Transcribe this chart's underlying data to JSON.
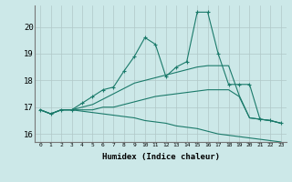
{
  "xlabel": "Humidex (Indice chaleur)",
  "bg_color": "#cce8e8",
  "grid_color": "#b0c8c8",
  "line_color": "#1a7a6a",
  "xlim": [
    -0.5,
    23.5
  ],
  "ylim": [
    15.7,
    20.8
  ],
  "yticks": [
    16,
    17,
    18,
    19,
    20
  ],
  "xticks": [
    0,
    1,
    2,
    3,
    4,
    5,
    6,
    7,
    8,
    9,
    10,
    11,
    12,
    13,
    14,
    15,
    16,
    17,
    18,
    19,
    20,
    21,
    22,
    23
  ],
  "lines": [
    {
      "x": [
        0,
        1,
        2,
        3,
        4,
        5,
        6,
        7,
        8,
        9,
        10,
        11,
        12,
        13,
        14,
        15,
        16,
        17,
        18,
        19,
        20,
        21,
        22,
        23
      ],
      "y": [
        16.9,
        16.75,
        16.9,
        16.9,
        16.85,
        16.8,
        16.75,
        16.7,
        16.65,
        16.6,
        16.5,
        16.45,
        16.4,
        16.3,
        16.25,
        16.2,
        16.1,
        16.0,
        15.95,
        15.9,
        15.85,
        15.8,
        15.75,
        15.7
      ],
      "marker": false
    },
    {
      "x": [
        0,
        1,
        2,
        3,
        4,
        5,
        6,
        7,
        8,
        9,
        10,
        11,
        12,
        13,
        14,
        15,
        16,
        17,
        18,
        19,
        20,
        21,
        22,
        23
      ],
      "y": [
        16.9,
        16.75,
        16.9,
        16.9,
        16.9,
        16.9,
        17.0,
        17.0,
        17.1,
        17.2,
        17.3,
        17.4,
        17.45,
        17.5,
        17.55,
        17.6,
        17.65,
        17.65,
        17.65,
        17.4,
        16.6,
        16.55,
        16.5,
        16.4
      ],
      "marker": false
    },
    {
      "x": [
        0,
        1,
        2,
        3,
        4,
        5,
        6,
        7,
        8,
        9,
        10,
        11,
        12,
        13,
        14,
        15,
        16,
        17,
        18,
        19,
        20,
        21,
        22,
        23
      ],
      "y": [
        16.9,
        16.75,
        16.9,
        16.9,
        17.0,
        17.1,
        17.3,
        17.5,
        17.7,
        17.9,
        18.0,
        18.1,
        18.2,
        18.3,
        18.4,
        18.5,
        18.55,
        18.55,
        18.55,
        17.45,
        16.6,
        16.55,
        16.5,
        16.4
      ],
      "marker": false
    },
    {
      "x": [
        0,
        1,
        2,
        3,
        4,
        5,
        6,
        7,
        8,
        9,
        10,
        11,
        12,
        13,
        14,
        15,
        16,
        17,
        18,
        19,
        20,
        21,
        22,
        23
      ],
      "y": [
        16.9,
        16.75,
        16.9,
        16.9,
        17.15,
        17.4,
        17.65,
        17.75,
        18.35,
        18.9,
        19.6,
        19.35,
        18.15,
        18.5,
        18.7,
        20.55,
        20.55,
        19.0,
        17.85,
        17.85,
        17.85,
        16.55,
        16.5,
        16.4
      ],
      "marker": true
    }
  ]
}
